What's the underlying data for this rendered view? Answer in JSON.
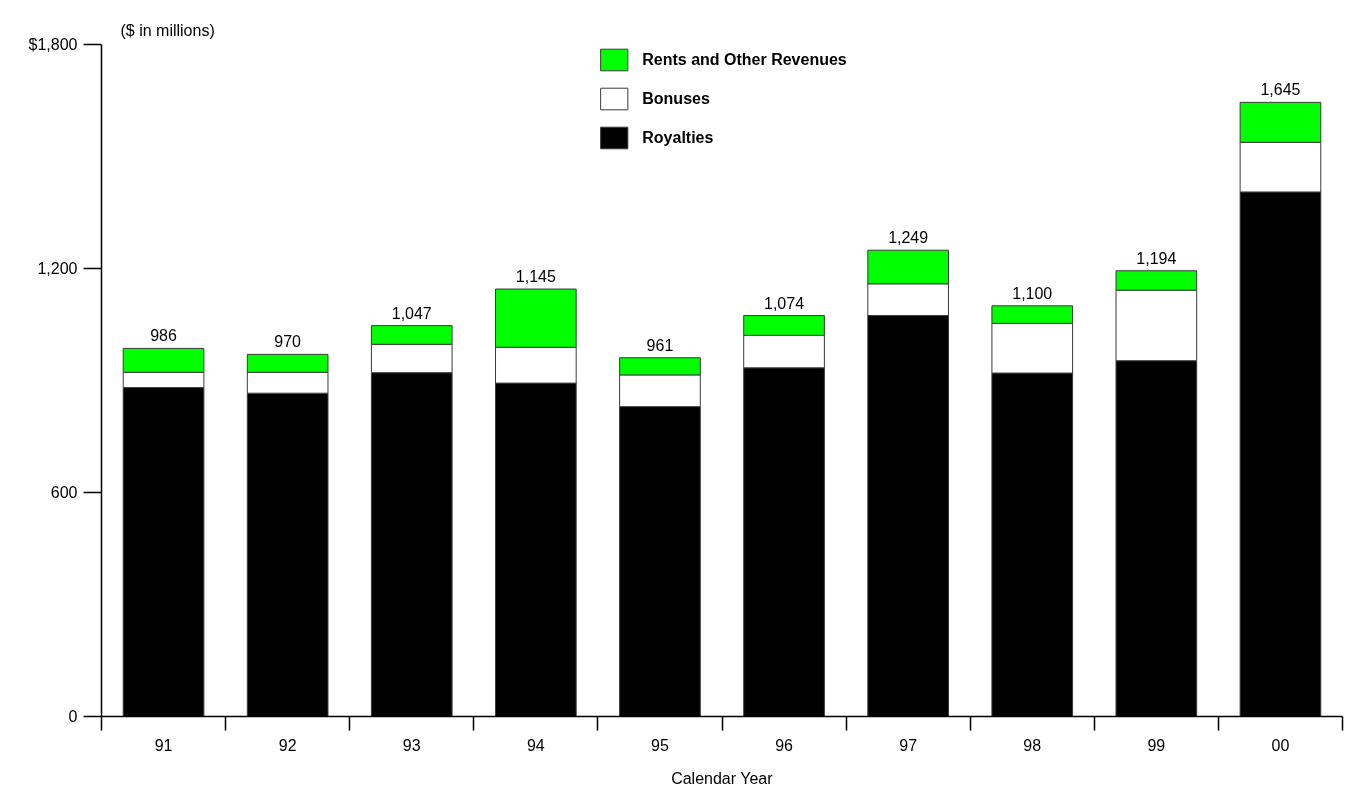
{
  "chart_data": {
    "type": "bar",
    "stacked": true,
    "ylabel": "($ in millions)",
    "xlabel": "Calendar Year",
    "categories": [
      "91",
      "92",
      "93",
      "94",
      "95",
      "96",
      "97",
      "98",
      "99",
      "00"
    ],
    "series": [
      {
        "name": "Royalties",
        "color": "#000000",
        "values": [
          881,
          866,
          921,
          893,
          830,
          934,
          1074,
          920,
          953,
          1405
        ]
      },
      {
        "name": "Bonuses",
        "color": "#ffffff",
        "values": [
          41,
          56,
          76,
          96,
          85,
          87,
          85,
          133,
          189,
          133
        ]
      },
      {
        "name": "Rents and Other Revenues",
        "color": "#00ff00",
        "values": [
          64,
          48,
          50,
          156,
          46,
          53,
          90,
          47,
          52,
          107
        ]
      }
    ],
    "totals": [
      "986",
      "970",
      "1,047",
      "1,145",
      "961",
      "1,074",
      "1,249",
      "1,100",
      "1,194",
      "1,645"
    ],
    "ylim": [
      0,
      1800
    ],
    "yticks": [
      0,
      600,
      {
        "value": 1200,
        "label": "1,200"
      },
      {
        "value": 1800,
        "label": "$1,800"
      }
    ],
    "legend": "top"
  }
}
